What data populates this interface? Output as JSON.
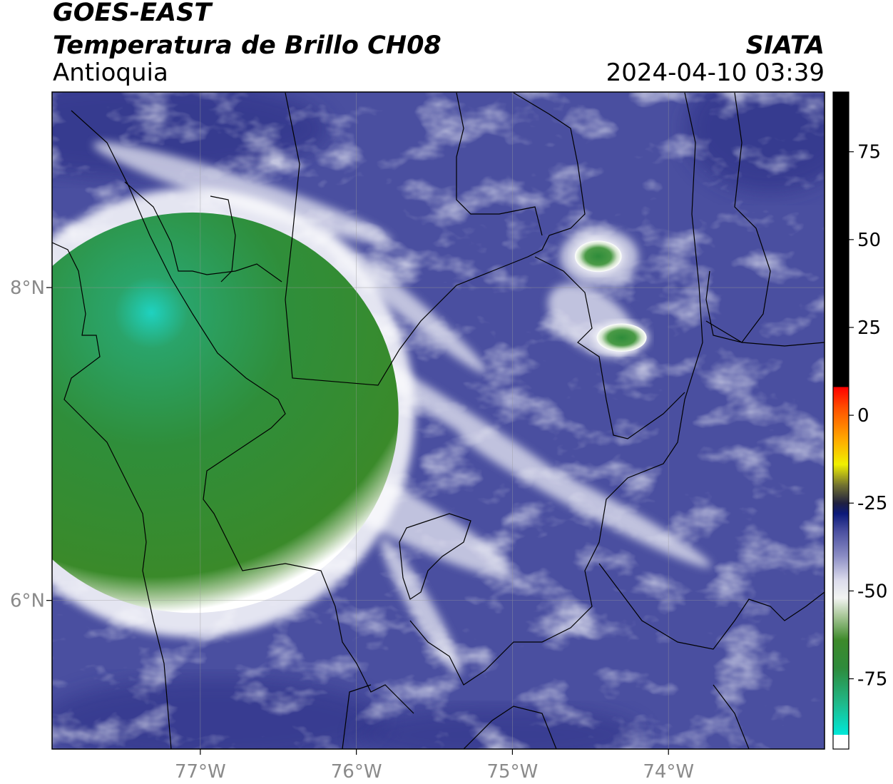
{
  "header": {
    "satellite": "GOES-EAST",
    "product": "Temperatura de Brillo CH08",
    "organization": "SIATA",
    "region": "Antioquia",
    "timestamp": "2024-04-10 03:39"
  },
  "map": {
    "lon_range": [
      -77.95,
      -73.0
    ],
    "lat_range": [
      5.05,
      9.25
    ],
    "lon_ticks": [
      {
        "value": -77,
        "label": "77°W"
      },
      {
        "value": -76,
        "label": "76°W"
      },
      {
        "value": -75,
        "label": "75°W"
      },
      {
        "value": -74,
        "label": "74°W"
      }
    ],
    "lat_ticks": [
      {
        "value": 8,
        "label": "8°N"
      },
      {
        "value": 6,
        "label": "6°N"
      }
    ],
    "grid": true,
    "background_color": "#4a4fa0"
  },
  "colorbar": {
    "range": [
      -95,
      92
    ],
    "ticks": [
      {
        "value": 75,
        "label": "75"
      },
      {
        "value": 50,
        "label": "50"
      },
      {
        "value": 25,
        "label": "25"
      },
      {
        "value": 0,
        "label": "0"
      },
      {
        "value": -25,
        "label": "-25"
      },
      {
        "value": -50,
        "label": "-50"
      },
      {
        "value": -75,
        "label": "-75"
      }
    ],
    "stops": [
      {
        "value": -95,
        "color": "#ffffff"
      },
      {
        "value": -91,
        "color": "#ffffff"
      },
      {
        "value": -90.9,
        "color": "#00e8d8"
      },
      {
        "value": -82,
        "color": "#1fb98a"
      },
      {
        "value": -72,
        "color": "#2e8b3c"
      },
      {
        "value": -64,
        "color": "#3d8a2a"
      },
      {
        "value": -57,
        "color": "#aac89a"
      },
      {
        "value": -52,
        "color": "#f2f4f2"
      },
      {
        "value": -47,
        "color": "#dcdcec"
      },
      {
        "value": -40,
        "color": "#8a8cc4"
      },
      {
        "value": -33,
        "color": "#4a4fa0"
      },
      {
        "value": -28,
        "color": "#0c1a7a"
      },
      {
        "value": -25,
        "color": "#202040"
      },
      {
        "value": -20,
        "color": "#707030"
      },
      {
        "value": -14,
        "color": "#f0f000"
      },
      {
        "value": -7,
        "color": "#ffaa00"
      },
      {
        "value": 2,
        "color": "#ff5000"
      },
      {
        "value": 8,
        "color": "#ff0000"
      },
      {
        "value": 8.1,
        "color": "#000000"
      },
      {
        "value": 92,
        "color": "#000000"
      }
    ]
  },
  "cloud_features": [
    {
      "name": "large-cold-cloud-top",
      "lon": -77.05,
      "lat": 7.2,
      "rx_deg": 1.32,
      "ry_deg": 1.28,
      "min_temp": -85
    },
    {
      "name": "small-cold-cell-north",
      "lon": -74.45,
      "lat": 8.2,
      "rx_deg": 0.15,
      "ry_deg": 0.1,
      "min_temp": -68
    },
    {
      "name": "small-cold-cell-east",
      "lon": -74.3,
      "lat": 7.68,
      "rx_deg": 0.16,
      "ry_deg": 0.09,
      "min_temp": -65
    }
  ]
}
